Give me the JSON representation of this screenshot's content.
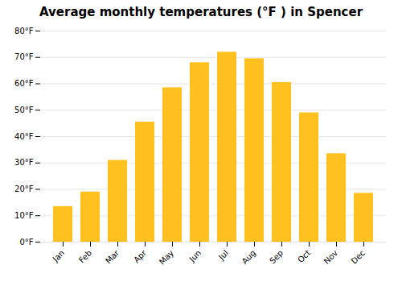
{
  "chart_data": {
    "type": "bar",
    "title": "Average monthly temperatures (°F ) in Spencer",
    "categories": [
      "Jan",
      "Feb",
      "Mar",
      "Apr",
      "May",
      "Jun",
      "Jul",
      "Aug",
      "Sep",
      "Oct",
      "Nov",
      "Dec"
    ],
    "values": [
      13.5,
      19.0,
      31.0,
      45.5,
      58.5,
      68.0,
      72.0,
      69.5,
      60.5,
      49.0,
      33.5,
      18.5
    ],
    "color": "#FFC020",
    "ylim": [
      0,
      80
    ],
    "yticks": [
      {
        "value": 0,
        "label": "0°F"
      },
      {
        "value": 10,
        "label": "10°F"
      },
      {
        "value": 20,
        "label": "20°F"
      },
      {
        "value": 30,
        "label": "30°F"
      },
      {
        "value": 40,
        "label": "40°F"
      },
      {
        "value": 50,
        "label": "50°F"
      },
      {
        "value": 60,
        "label": "60°F"
      },
      {
        "value": 70,
        "label": "70°F"
      },
      {
        "value": 80,
        "label": "80°F"
      }
    ],
    "grid": true
  }
}
